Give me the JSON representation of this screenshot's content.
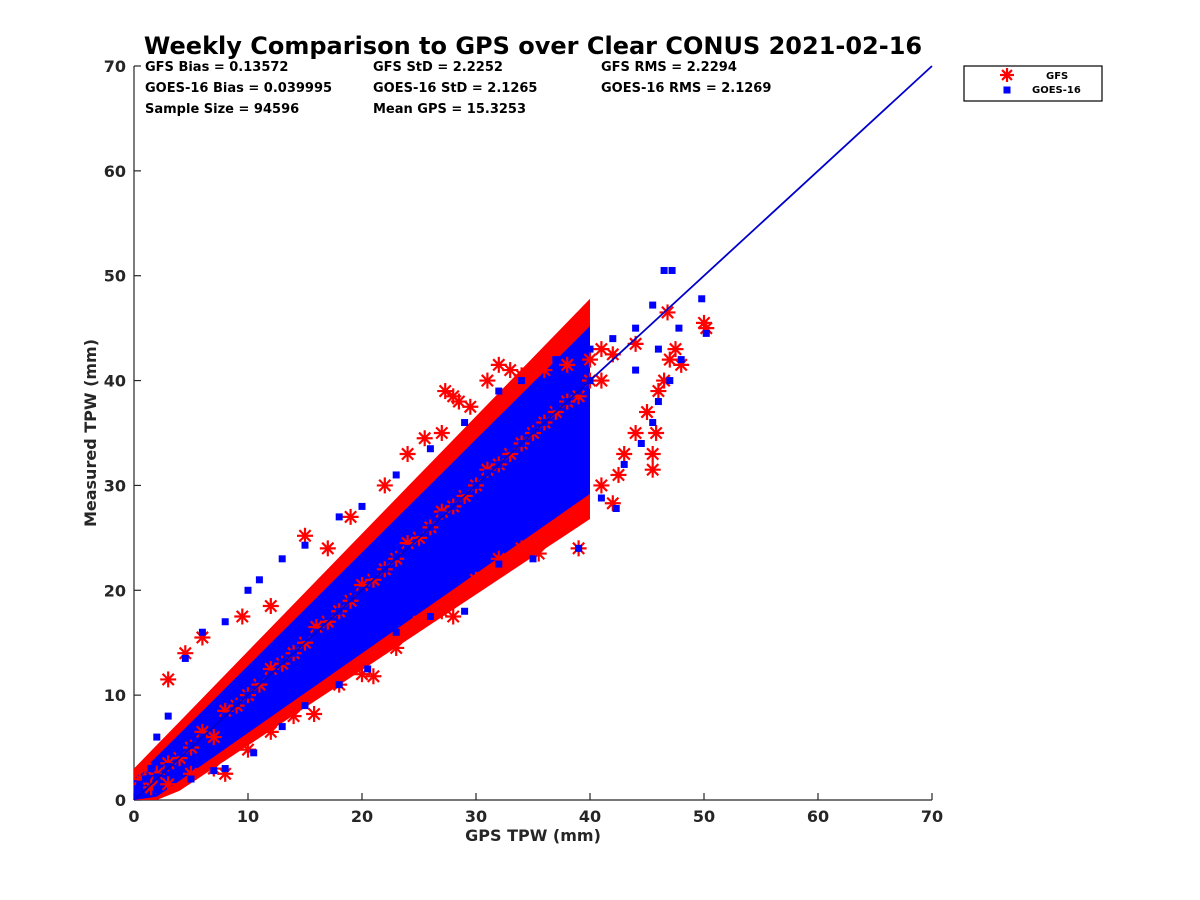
{
  "chart_data": {
    "type": "scatter",
    "title": "Weekly Comparison to GPS over Clear CONUS 2021-02-16",
    "xlabel": "GPS TPW (mm)",
    "ylabel": "Measured TPW (mm)",
    "xlim": [
      0,
      70
    ],
    "ylim": [
      0,
      70
    ],
    "x_ticks": [
      0,
      10,
      20,
      30,
      40,
      50,
      60,
      70
    ],
    "y_ticks": [
      0,
      10,
      20,
      30,
      40,
      50,
      60,
      70
    ],
    "grid": false,
    "legend_position": "outside-top-right",
    "stats": {
      "gfs_bias": "GFS Bias = 0.13572",
      "gfs_std": "GFS StD = 2.2252",
      "gfs_rms": "GFS RMS = 2.2294",
      "goes_bias": "GOES-16 Bias = 0.039995",
      "goes_std": "GOES-16 StD = 2.1265",
      "goes_rms": "GOES-16 RMS = 2.1269",
      "sample_size": "Sample Size = 94596",
      "mean_gps": "Mean GPS = 15.3253"
    },
    "reference_line": {
      "x": [
        0,
        70
      ],
      "y": [
        0,
        70
      ],
      "color": "#0000cc"
    },
    "series": [
      {
        "name": "GFS",
        "marker": "asterisk",
        "color": "#ff0000",
        "points": [
          [
            0.5,
            2
          ],
          [
            1,
            3
          ],
          [
            2,
            2.5
          ],
          [
            3,
            3.5
          ],
          [
            4,
            4
          ],
          [
            5,
            5
          ],
          [
            6,
            6.5
          ],
          [
            7,
            6
          ],
          [
            8,
            8.5
          ],
          [
            9,
            9
          ],
          [
            10,
            10
          ],
          [
            11,
            11
          ],
          [
            12,
            12.5
          ],
          [
            13,
            13
          ],
          [
            14,
            14
          ],
          [
            15,
            15
          ],
          [
            16,
            16.5
          ],
          [
            17,
            17
          ],
          [
            18,
            18
          ],
          [
            19,
            19
          ],
          [
            20,
            20.5
          ],
          [
            21,
            21
          ],
          [
            22,
            22
          ],
          [
            23,
            23
          ],
          [
            24,
            24.5
          ],
          [
            25,
            25
          ],
          [
            26,
            26
          ],
          [
            27,
            27.5
          ],
          [
            28,
            28
          ],
          [
            29,
            29
          ],
          [
            30,
            30
          ],
          [
            31,
            31.5
          ],
          [
            32,
            32
          ],
          [
            33,
            33
          ],
          [
            34,
            34
          ],
          [
            35,
            35
          ],
          [
            36,
            36
          ],
          [
            37,
            37
          ],
          [
            38,
            38
          ],
          [
            39,
            38.5
          ],
          [
            40,
            40
          ],
          [
            41,
            40
          ],
          [
            3,
            11.5
          ],
          [
            4.5,
            14
          ],
          [
            6,
            15.5
          ],
          [
            9.5,
            17.5
          ],
          [
            12,
            18.5
          ],
          [
            15,
            25.2
          ],
          [
            17,
            24
          ],
          [
            19,
            27
          ],
          [
            22,
            30
          ],
          [
            24,
            33
          ],
          [
            25.5,
            34.5
          ],
          [
            27,
            35
          ],
          [
            27.3,
            39
          ],
          [
            28,
            38.5
          ],
          [
            28.5,
            38
          ],
          [
            29.5,
            37.5
          ],
          [
            31,
            40
          ],
          [
            32,
            41.5
          ],
          [
            33,
            41
          ],
          [
            34,
            40.5
          ],
          [
            36,
            41
          ],
          [
            38,
            41.5
          ],
          [
            1.5,
            1.2
          ],
          [
            3,
            1.5
          ],
          [
            5,
            2.5
          ],
          [
            7,
            3
          ],
          [
            8,
            2.5
          ],
          [
            10,
            4.8
          ],
          [
            12,
            6.5
          ],
          [
            14,
            8
          ],
          [
            15.8,
            8.2
          ],
          [
            18,
            11
          ],
          [
            20,
            12
          ],
          [
            21,
            11.8
          ],
          [
            23,
            14.5
          ],
          [
            25,
            17
          ],
          [
            27,
            18
          ],
          [
            28,
            17.5
          ],
          [
            30,
            21
          ],
          [
            32,
            23
          ],
          [
            34,
            24
          ],
          [
            35.5,
            23.5
          ],
          [
            39,
            24
          ],
          [
            38.5,
            27
          ],
          [
            42,
            28.3
          ],
          [
            42.5,
            31
          ],
          [
            41,
            30
          ],
          [
            43,
            33
          ],
          [
            44,
            35
          ],
          [
            45,
            37
          ],
          [
            45.5,
            33
          ],
          [
            45.5,
            31.5
          ],
          [
            45.8,
            35
          ],
          [
            46,
            39
          ],
          [
            46.5,
            40
          ],
          [
            47,
            42
          ],
          [
            47.5,
            43
          ],
          [
            48,
            41.5
          ],
          [
            46.8,
            46.5
          ],
          [
            50,
            45.5
          ],
          [
            50.2,
            45
          ],
          [
            44,
            43.5
          ],
          [
            42,
            42.5
          ],
          [
            41,
            43
          ],
          [
            40,
            42
          ]
        ]
      },
      {
        "name": "GOES-16",
        "marker": "square",
        "color": "#0000ff",
        "points": [
          [
            0.5,
            1.5
          ],
          [
            1,
            2
          ],
          [
            1.5,
            3
          ],
          [
            2,
            2.2
          ],
          [
            3,
            3.2
          ],
          [
            4,
            4.5
          ],
          [
            5,
            5.2
          ],
          [
            6,
            6
          ],
          [
            7,
            7.2
          ],
          [
            8,
            8
          ],
          [
            9,
            9.2
          ],
          [
            10,
            10
          ],
          [
            11,
            11.5
          ],
          [
            12,
            12
          ],
          [
            13,
            13.2
          ],
          [
            14,
            14
          ],
          [
            15,
            15.5
          ],
          [
            16,
            16
          ],
          [
            17,
            17.5
          ],
          [
            18,
            18
          ],
          [
            19,
            19.2
          ],
          [
            20,
            20
          ],
          [
            21,
            21.5
          ],
          [
            22,
            22
          ],
          [
            23,
            23.2
          ],
          [
            24,
            24
          ],
          [
            25,
            25.5
          ],
          [
            26,
            26
          ],
          [
            27,
            27.2
          ],
          [
            28,
            28
          ],
          [
            29,
            29.5
          ],
          [
            30,
            30
          ],
          [
            31,
            31.2
          ],
          [
            32,
            32
          ],
          [
            33,
            33.5
          ],
          [
            34,
            34
          ],
          [
            35,
            35.2
          ],
          [
            36,
            36
          ],
          [
            37,
            37.5
          ],
          [
            38,
            38
          ],
          [
            39,
            39
          ],
          [
            40,
            40
          ],
          [
            2,
            6
          ],
          [
            3,
            8
          ],
          [
            4.5,
            13.5
          ],
          [
            6,
            16
          ],
          [
            8,
            17
          ],
          [
            10,
            20
          ],
          [
            11,
            21
          ],
          [
            13,
            23
          ],
          [
            15,
            24.3
          ],
          [
            18,
            27
          ],
          [
            20,
            28
          ],
          [
            23,
            31
          ],
          [
            26,
            33.5
          ],
          [
            29,
            36
          ],
          [
            32,
            39
          ],
          [
            34,
            40
          ],
          [
            37,
            42
          ],
          [
            40,
            43
          ],
          [
            42,
            44
          ],
          [
            44,
            45
          ],
          [
            45.5,
            47.2
          ],
          [
            46.5,
            50.5
          ],
          [
            47.2,
            50.5
          ],
          [
            49.8,
            47.8
          ],
          [
            50.2,
            44.5
          ],
          [
            47.8,
            45
          ],
          [
            2,
            1
          ],
          [
            5,
            2
          ],
          [
            7,
            2.8
          ],
          [
            8,
            3
          ],
          [
            10.5,
            4.5
          ],
          [
            13,
            7
          ],
          [
            15,
            9
          ],
          [
            18,
            11
          ],
          [
            20.5,
            12.5
          ],
          [
            23,
            16
          ],
          [
            26,
            17.5
          ],
          [
            29,
            18
          ],
          [
            32,
            22.5
          ],
          [
            35,
            23
          ],
          [
            39,
            24
          ],
          [
            41,
            28.8
          ],
          [
            42.3,
            27.8
          ],
          [
            43,
            32
          ],
          [
            44.5,
            34
          ],
          [
            45.5,
            36
          ],
          [
            46,
            38
          ],
          [
            47,
            40
          ],
          [
            48,
            42
          ],
          [
            46,
            43
          ],
          [
            44,
            41
          ]
        ]
      }
    ]
  }
}
